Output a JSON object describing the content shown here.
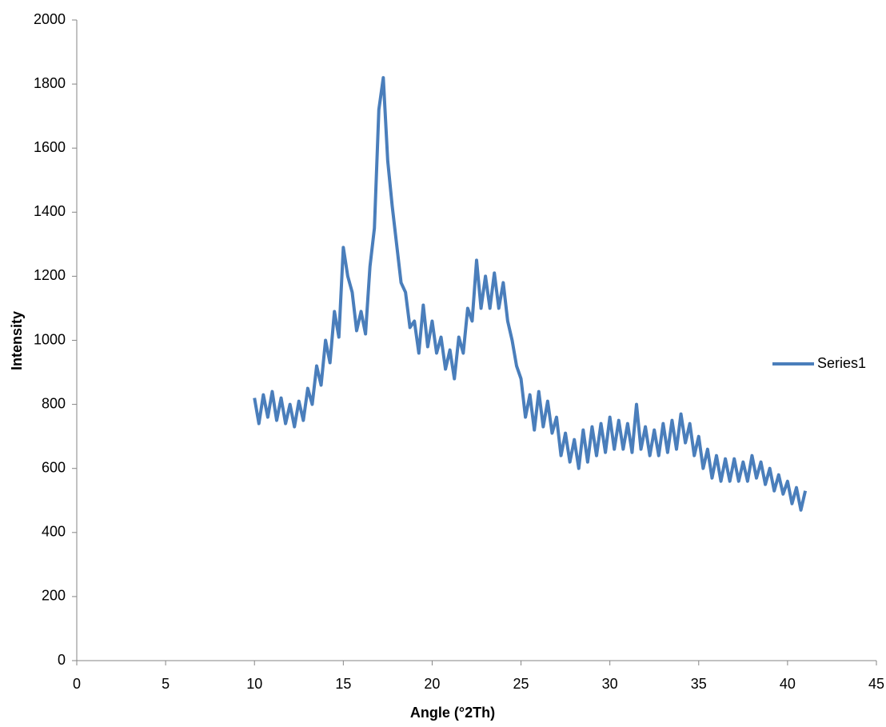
{
  "chart_data": {
    "type": "line",
    "x_label": "Angle (°2Th)",
    "y_label": "Intensity",
    "x": [
      10,
      10.25,
      10.5,
      10.75,
      11,
      11.25,
      11.5,
      11.75,
      12,
      12.25,
      12.5,
      12.75,
      13,
      13.25,
      13.5,
      13.75,
      14,
      14.25,
      14.5,
      14.75,
      15,
      15.25,
      15.5,
      15.75,
      16,
      16.25,
      16.5,
      16.75,
      17,
      17.25,
      17.5,
      17.75,
      18,
      18.25,
      18.5,
      18.75,
      19,
      19.25,
      19.5,
      19.75,
      20,
      20.25,
      20.5,
      20.75,
      21,
      21.25,
      21.5,
      21.75,
      22,
      22.25,
      22.5,
      22.75,
      23,
      23.25,
      23.5,
      23.75,
      24,
      24.25,
      24.5,
      24.75,
      25,
      25.25,
      25.5,
      25.75,
      26,
      26.25,
      26.5,
      26.75,
      27,
      27.25,
      27.5,
      27.75,
      28,
      28.25,
      28.5,
      28.75,
      29,
      29.25,
      29.5,
      29.75,
      30,
      30.25,
      30.5,
      30.75,
      31,
      31.25,
      31.5,
      31.75,
      32,
      32.25,
      32.5,
      32.75,
      33,
      33.25,
      33.5,
      33.75,
      34,
      34.25,
      34.5,
      34.75,
      35,
      35.25,
      35.5,
      35.75,
      36,
      36.25,
      36.5,
      36.75,
      37,
      37.25,
      37.5,
      37.75,
      38,
      38.25,
      38.5,
      38.75,
      39,
      39.25,
      39.5,
      39.75,
      40,
      40.25,
      40.5,
      40.75,
      41
    ],
    "series": [
      {
        "name": "Series1",
        "color": "#4a7ebb",
        "values": [
          820,
          740,
          830,
          760,
          840,
          750,
          820,
          740,
          800,
          730,
          810,
          750,
          850,
          800,
          920,
          860,
          1000,
          930,
          1090,
          1010,
          1290,
          1200,
          1150,
          1030,
          1090,
          1020,
          1230,
          1350,
          1720,
          1820,
          1560,
          1420,
          1300,
          1180,
          1150,
          1040,
          1060,
          960,
          1110,
          980,
          1060,
          960,
          1010,
          910,
          970,
          880,
          1010,
          960,
          1100,
          1060,
          1250,
          1100,
          1200,
          1100,
          1210,
          1100,
          1180,
          1060,
          1000,
          920,
          880,
          760,
          830,
          720,
          840,
          730,
          810,
          710,
          760,
          640,
          710,
          620,
          690,
          600,
          720,
          620,
          730,
          640,
          740,
          650,
          760,
          660,
          750,
          660,
          740,
          650,
          800,
          660,
          730,
          640,
          720,
          640,
          740,
          650,
          750,
          660,
          770,
          680,
          740,
          640,
          700,
          600,
          660,
          570,
          640,
          560,
          630,
          560,
          630,
          560,
          620,
          560,
          640,
          570,
          620,
          550,
          600,
          530,
          580,
          520,
          560,
          490,
          540,
          470,
          530
        ]
      }
    ],
    "xlim": [
      0,
      45
    ],
    "xticks": [
      0,
      5,
      10,
      15,
      20,
      25,
      30,
      35,
      40,
      45
    ],
    "ylim": [
      0,
      2000
    ],
    "yticks": [
      0,
      200,
      400,
      600,
      800,
      1000,
      1200,
      1400,
      1600,
      1800,
      2000
    ],
    "legend": "right"
  }
}
